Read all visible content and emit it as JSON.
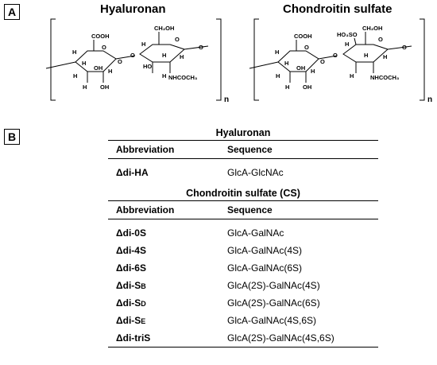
{
  "panel_a": {
    "label": "A",
    "hyaluronan_title": "Hyaluronan",
    "chondroitin_title": "Chondroitin sulfate",
    "repeat_subscript": "n",
    "hyaluronan_atoms": {
      "cooh": "COOH",
      "ch2oh": "CH₂OH",
      "nhcoch3": "NHCOCH₃",
      "o": "O",
      "oh": "OH",
      "h": "H",
      "ho": "HO"
    },
    "chondroitin_atoms": {
      "cooh": "COOH",
      "ch2oh": "CH₂OH",
      "nhcoch3": "NHCOCH₃",
      "ho3so": "HO₃SO",
      "o": "O",
      "oh": "OH",
      "h": "H"
    }
  },
  "panel_b": {
    "label": "B",
    "hyaluronan": {
      "title": "Hyaluronan",
      "headers": {
        "abbreviation": "Abbreviation",
        "sequence": "Sequence"
      },
      "rows": [
        {
          "abbreviation": "Δdi-HA",
          "sequence": "GlcA-GlcNAc"
        }
      ]
    },
    "chondroitin": {
      "title": "Chondroitin sulfate (CS)",
      "headers": {
        "abbreviation": "Abbreviation",
        "sequence": "Sequence"
      },
      "rows": [
        {
          "abbreviation": "Δdi-0S",
          "sequence": "GlcA-GalNAc"
        },
        {
          "abbreviation": "Δdi-4S",
          "sequence": "GlcA-GalNAc(4S)"
        },
        {
          "abbreviation": "Δdi-6S",
          "sequence": "GlcA-GalNAc(6S)"
        },
        {
          "abbreviation": "Δdi-S",
          "abbreviation_sub": "B",
          "sequence": "GlcA(2S)-GalNAc(4S)"
        },
        {
          "abbreviation": "Δdi-S",
          "abbreviation_sub": "D",
          "sequence": "GlcA(2S)-GalNAc(6S)"
        },
        {
          "abbreviation": "Δdi-S",
          "abbreviation_sub": "E",
          "sequence": "GlcA-GalNAc(4S,6S)"
        },
        {
          "abbreviation": "Δdi-triS",
          "sequence": "GlcA(2S)-GalNAc(4S,6S)"
        }
      ]
    }
  }
}
